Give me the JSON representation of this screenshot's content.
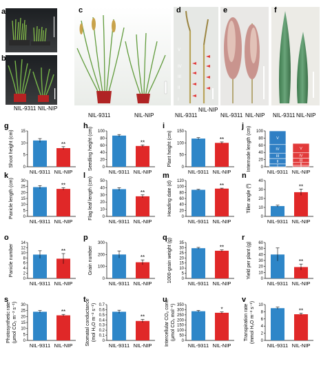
{
  "figure": {
    "panel_letters": [
      "a",
      "b",
      "c",
      "d",
      "e",
      "f",
      "g",
      "h",
      "i",
      "j",
      "k",
      "l",
      "m",
      "n",
      "o",
      "p",
      "q",
      "r",
      "s",
      "t",
      "u",
      "v"
    ],
    "photo_labels": {
      "left": "NIL-9311",
      "right": "NIL-NIP",
      "internodes": [
        "V",
        "IV",
        "III",
        "II",
        "I"
      ]
    },
    "colors": {
      "nil9311": "#2e86c8",
      "nilnip": "#e02828",
      "internode_blue": "#2f7fc4",
      "internode_red": "#e23a3a"
    }
  },
  "chart_data": [
    {
      "panel": "g",
      "type": "bar",
      "categories": [
        "NIL-9311",
        "NIL-NIP"
      ],
      "values": [
        11,
        7.8
      ],
      "errors": [
        0.8,
        0.6
      ],
      "ylabel": "Shoot height (cm)",
      "ylim": [
        0,
        15
      ],
      "yticks": [
        0,
        5,
        10,
        15
      ],
      "sig": [
        "",
        "**"
      ]
    },
    {
      "panel": "h",
      "type": "bar",
      "categories": [
        "NIL-9311",
        "NIL-NIP"
      ],
      "values": [
        87,
        58
      ],
      "errors": [
        3,
        3
      ],
      "ylabel": "Seedling height (cm)",
      "ylim": [
        0,
        100
      ],
      "yticks": [
        0,
        20,
        40,
        60,
        80,
        100
      ],
      "sig": [
        "",
        "**"
      ]
    },
    {
      "panel": "i",
      "type": "bar",
      "categories": [
        "NIL-9311",
        "NIL-NIP"
      ],
      "values": [
        118,
        100
      ],
      "errors": [
        4,
        4
      ],
      "ylabel": "Plant height (cm)",
      "ylim": [
        0,
        150
      ],
      "yticks": [
        0,
        50,
        100,
        150
      ],
      "sig": [
        "",
        "**"
      ]
    },
    {
      "panel": "j",
      "type": "stacked",
      "categories": [
        "NIL-9311",
        "NIL-NIP"
      ],
      "segments": [
        "I",
        "II",
        "III",
        "IV",
        "V"
      ],
      "values": [
        [
          8,
          15,
          15,
          24,
          38
        ],
        [
          4,
          8,
          12,
          15,
          26
        ]
      ],
      "ylabel": "Internode length (cm)",
      "ylim": [
        0,
        100
      ],
      "yticks": [
        0,
        20,
        40,
        60,
        80,
        100
      ]
    },
    {
      "panel": "k",
      "type": "bar",
      "categories": [
        "NIL-9311",
        "NIL-NIP"
      ],
      "values": [
        24.5,
        23
      ],
      "errors": [
        1.3,
        1.0
      ],
      "ylabel": "Panicle length (cm)",
      "ylim": [
        0,
        30
      ],
      "yticks": [
        0,
        5,
        10,
        15,
        20,
        25,
        30
      ],
      "sig": [
        "",
        "**"
      ]
    },
    {
      "panel": "l",
      "type": "bar",
      "categories": [
        "NIL-9311",
        "NIL-NIP"
      ],
      "values": [
        38,
        28
      ],
      "errors": [
        2,
        2
      ],
      "ylabel": "Flag leaf length (cm)",
      "ylim": [
        0,
        50
      ],
      "yticks": [
        0,
        10,
        20,
        30,
        40,
        50
      ],
      "sig": [
        "",
        "**"
      ]
    },
    {
      "panel": "m",
      "type": "bar",
      "categories": [
        "NIL-9311",
        "NIL-NIP"
      ],
      "values": [
        89,
        93
      ],
      "errors": [
        1.5,
        1.5
      ],
      "ylabel": "Heading date (d)",
      "ylim": [
        0,
        120
      ],
      "yticks": [
        0,
        20,
        40,
        60,
        80,
        100,
        120
      ],
      "sig": [
        "",
        "**"
      ]
    },
    {
      "panel": "n",
      "type": "bar",
      "categories": [
        "NIL-9311",
        "NIL-NIP"
      ],
      "values": [
        11.5,
        27
      ],
      "errors": [
        1,
        3.5
      ],
      "ylabel": "Tiller angle (º)",
      "ylim": [
        0,
        40
      ],
      "yticks": [
        0,
        10,
        20,
        30,
        40
      ],
      "sig": [
        "",
        "**"
      ]
    },
    {
      "panel": "o",
      "type": "bar",
      "categories": [
        "NIL-9311",
        "NIL-NIP"
      ],
      "values": [
        9.3,
        7.7
      ],
      "errors": [
        1.5,
        2.0
      ],
      "ylabel": "Panicle number",
      "ylim": [
        0,
        14
      ],
      "yticks": [
        0,
        2,
        4,
        6,
        8,
        10,
        12,
        14
      ],
      "sig": [
        "",
        "**"
      ]
    },
    {
      "panel": "p",
      "type": "bar",
      "categories": [
        "NIL-9311",
        "NIL-NIP"
      ],
      "values": [
        200,
        135
      ],
      "errors": [
        30,
        20
      ],
      "ylabel": "Grain number",
      "ylim": [
        0,
        300
      ],
      "yticks": [
        0,
        100,
        200,
        300
      ],
      "sig": [
        "",
        "**"
      ]
    },
    {
      "panel": "q",
      "type": "bar",
      "categories": [
        "NIL-9311",
        "NIL-NIP"
      ],
      "values": [
        29.5,
        27
      ],
      "errors": [
        0.8,
        0.8
      ],
      "ylabel": "1000-grain weight (g)",
      "ylim": [
        0,
        35
      ],
      "yticks": [
        0,
        5,
        10,
        15,
        20,
        25,
        30,
        35
      ],
      "sig": [
        "",
        "**"
      ]
    },
    {
      "panel": "r",
      "type": "bar",
      "categories": [
        "NIL-9311",
        "NIL-NIP"
      ],
      "values": [
        40,
        19
      ],
      "errors": [
        11,
        5
      ],
      "ylabel": "Yield per plant (g)",
      "ylim": [
        0,
        60
      ],
      "yticks": [
        0,
        10,
        20,
        30,
        40,
        50,
        60
      ],
      "sig": [
        "",
        "**"
      ]
    },
    {
      "panel": "s",
      "type": "bar",
      "categories": [
        "NIL-9311",
        "NIL-NIP"
      ],
      "values": [
        24,
        21
      ],
      "errors": [
        1,
        0.8
      ],
      "ylabel": "Photosynthetic rate",
      "ylabel2": "(μmol CO₂ m⁻² s⁻¹)",
      "ylim": [
        0,
        30
      ],
      "yticks": [
        0,
        5,
        10,
        15,
        20,
        25,
        30
      ],
      "sig": [
        "",
        "**"
      ]
    },
    {
      "panel": "t",
      "type": "bar",
      "categories": [
        "NIL-9311",
        "NIL-NIP"
      ],
      "values": [
        0.56,
        0.38
      ],
      "errors": [
        0.03,
        0.03
      ],
      "ylabel": "Stomatal conductance",
      "ylabel2": "(mol H₂O m⁻² s⁻¹)",
      "ylim": [
        0,
        0.7
      ],
      "yticks": [
        0,
        0.1,
        0.2,
        0.3,
        0.4,
        0.5,
        0.6,
        0.7
      ],
      "sig": [
        "",
        "**"
      ]
    },
    {
      "panel": "u",
      "type": "bar",
      "categories": [
        "NIL-9311",
        "NIL-NIP"
      ],
      "values": [
        285,
        270
      ],
      "errors": [
        8,
        8
      ],
      "ylabel": "Intercellular CO₂ conc.",
      "ylabel2": "(μmol CO₂ mol⁻¹)",
      "ylim": [
        0,
        350
      ],
      "yticks": [
        0,
        50,
        100,
        150,
        200,
        250,
        300,
        350
      ],
      "sig": [
        "",
        "*"
      ]
    },
    {
      "panel": "v",
      "type": "bar",
      "categories": [
        "NIL-9311",
        "NIL-NIP"
      ],
      "values": [
        9,
        7.3
      ],
      "errors": [
        0.3,
        0.3
      ],
      "ylabel": "Transpiration rate",
      "ylabel2": "(mmol H₂O m⁻² s⁻¹)",
      "ylim": [
        0,
        10
      ],
      "yticks": [
        0,
        2,
        4,
        6,
        8,
        10
      ],
      "sig": [
        "",
        "**"
      ]
    }
  ]
}
